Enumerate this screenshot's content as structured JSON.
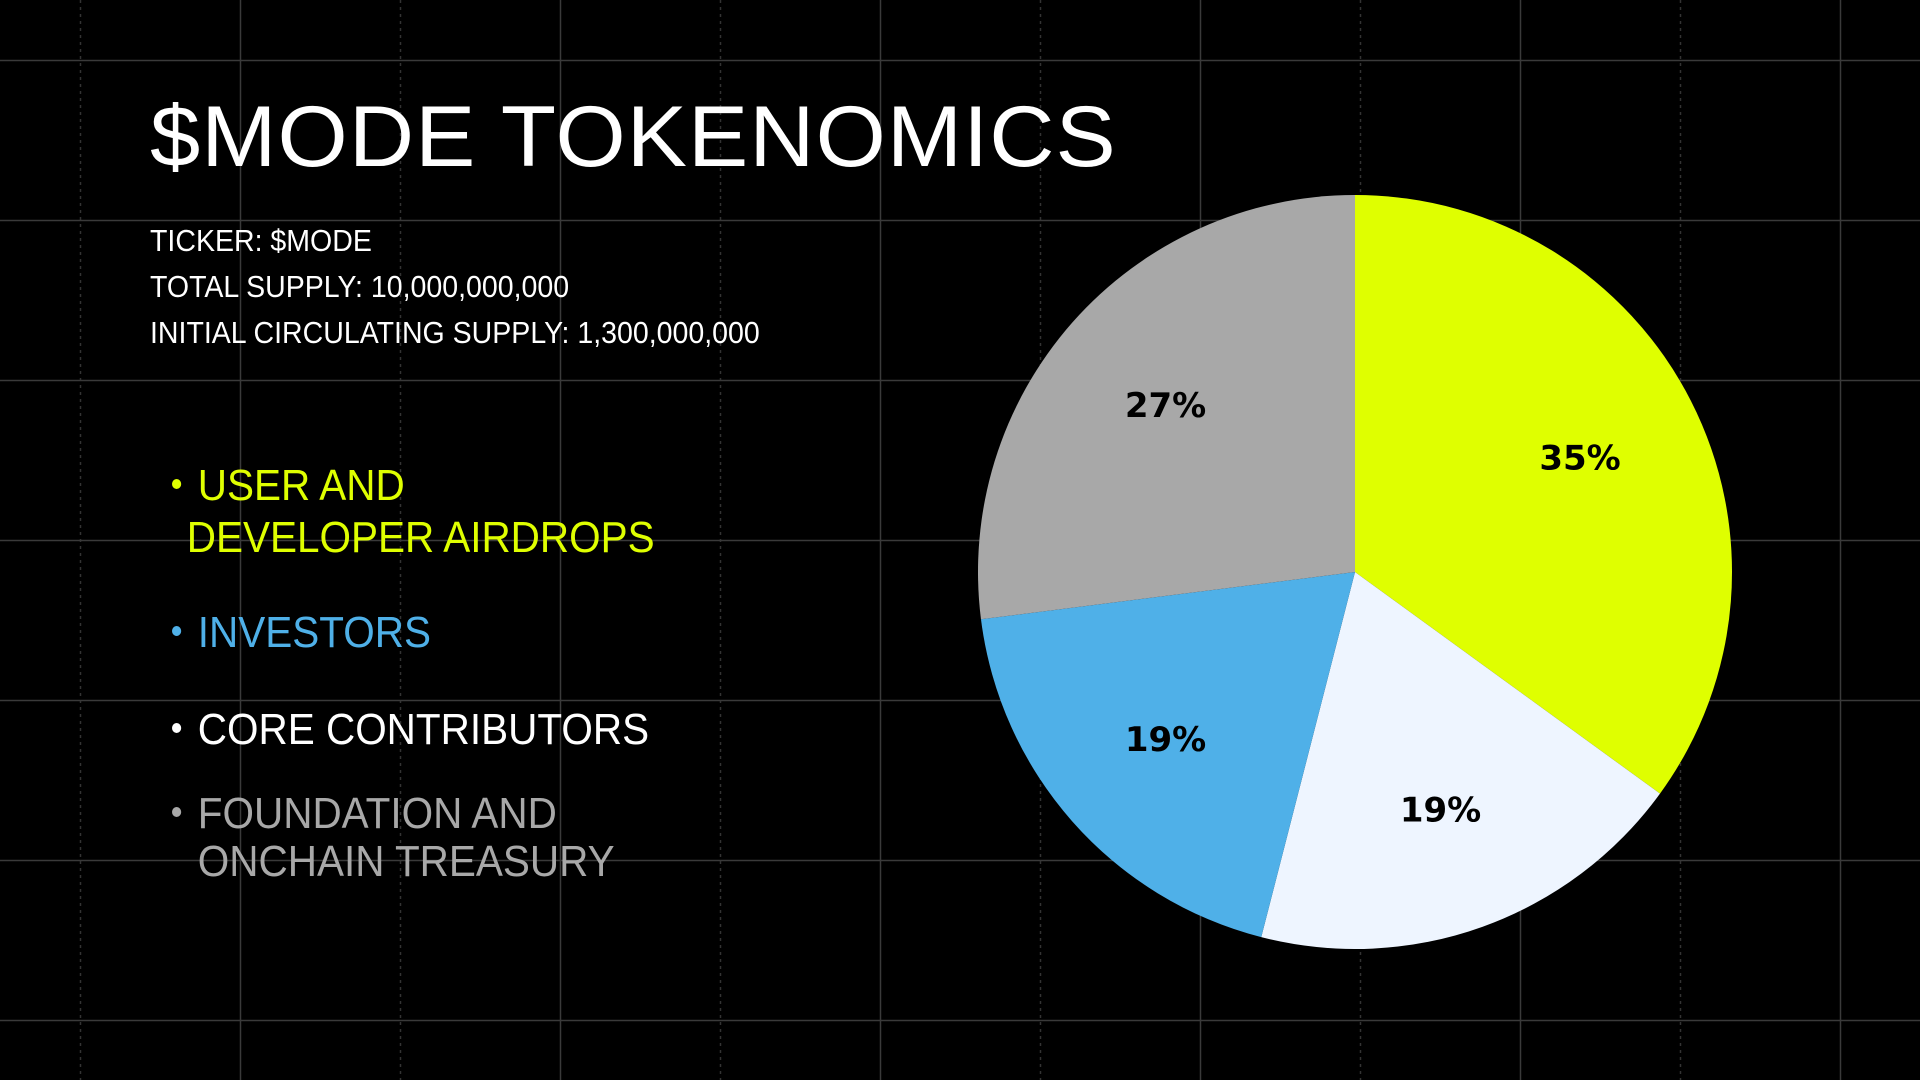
{
  "title": "$MODE TOKENOMICS",
  "info": {
    "ticker": "TICKER: $MODE",
    "total_supply": "TOTAL SUPPLY: 10,000,000,000",
    "initial_circulating": "INITIAL CIRCULATING SUPPLY: 1,300,000,000"
  },
  "legend": [
    {
      "line1": "USER AND",
      "line2": "DEVELOPER AIRDROPS",
      "color": "#dfff00"
    },
    {
      "line1": "INVESTORS",
      "line2": "",
      "color": "#4fb0e8"
    },
    {
      "line1": "CORE CONTRIBUTORS",
      "line2": "",
      "color": "#ffffff"
    },
    {
      "line1": "FOUNDATION AND",
      "line2": "ONCHAIN TREASURY",
      "color": "#a8a8a8"
    }
  ],
  "chart_data": {
    "type": "pie",
    "start": "top, clockwise",
    "slices": [
      {
        "category": "USER AND DEVELOPER AIRDROPS",
        "value": 35,
        "label": "35%",
        "color": "#dfff00"
      },
      {
        "category": "CORE CONTRIBUTORS",
        "value": 19,
        "label": "19%",
        "color": "#eef5ff"
      },
      {
        "category": "INVESTORS",
        "value": 19,
        "label": "19%",
        "color": "#4fb0e8"
      },
      {
        "category": "FOUNDATION AND ONCHAIN TREASURY",
        "value": 27,
        "label": "27%",
        "color": "#a8a8a8"
      }
    ]
  }
}
